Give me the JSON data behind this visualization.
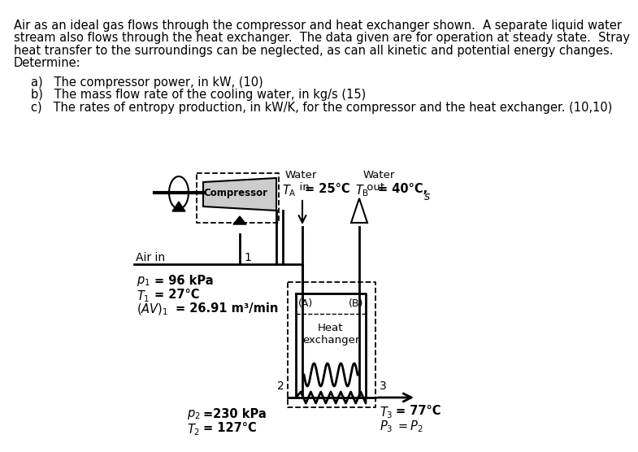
{
  "bg_color": "#ffffff",
  "para_lines": [
    "Air as an ideal gas flows through the compressor and heat exchanger shown.  A separate liquid water",
    "stream also flows through the heat exchanger.  The data given are for operation at steady state.  Stray",
    "heat transfer to the surroundings can be neglected, as can all kinetic and potential energy changes.",
    "Determine:"
  ],
  "items": [
    "a)   The compressor power, in kW, (10)",
    "b)   The mass flow rate of the cooling water, in kg/s (15)",
    "c)   The rates of entropy production, in kW/K, for the compressor and the heat exchanger. (10,10)"
  ],
  "compressor_label": "Compressor",
  "water_in": "Water\n  in",
  "water_out": "Water\n out",
  "air_in": "Air in",
  "label_1": "1",
  "label_2": "2",
  "label_3": "3",
  "label_A": "(A)",
  "label_B": "(B)",
  "heat_exchanger_line1": "Heat",
  "heat_exchanger_line2": "exchanger",
  "TA_text": "= 25°C",
  "TB_text": "= 40°C,",
  "s_label": "s",
  "p1_text": "= 96 kPa",
  "T1_text": "= 27°C",
  "AV1_text": "= 26.91 m³/min",
  "p2_text": "=230 kPa",
  "T2_text": "= 127°C",
  "T3_text": "= 77°C",
  "P3eqP2_text": "= P"
}
